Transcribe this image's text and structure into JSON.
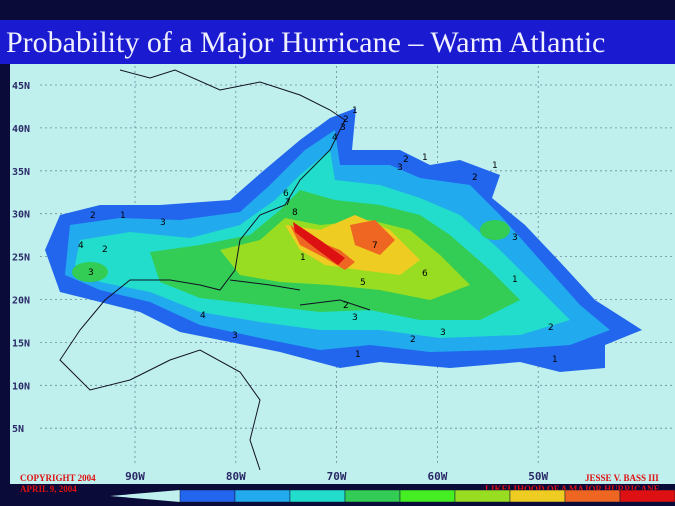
{
  "title": "Probability of a Major Hurricane – Warm Atlantic",
  "lat_labels": [
    "45N",
    "40N",
    "35N",
    "30N",
    "25N",
    "20N",
    "15N",
    "10N",
    "5N"
  ],
  "lon_labels": [
    "90W",
    "80W",
    "70W",
    "60W",
    "50W"
  ],
  "footer": {
    "copyright": "COPYRIGHT 2004",
    "date": "APRIL 9, 2004",
    "author": "JESSE V. BASS III",
    "caption": "LIKELIHOOD OF A MAJOR HURRICANE"
  },
  "contour_labels": [
    "1",
    "2",
    "3",
    "4",
    "1",
    "2",
    "3",
    "1",
    "2",
    "7",
    "6",
    "8",
    "7",
    "6",
    "5",
    "2",
    "3",
    "4",
    "3",
    "2",
    "1",
    "3",
    "4",
    "3",
    "2",
    "1",
    "3",
    "2",
    "1",
    "1",
    "2",
    "3",
    "1"
  ]
}
